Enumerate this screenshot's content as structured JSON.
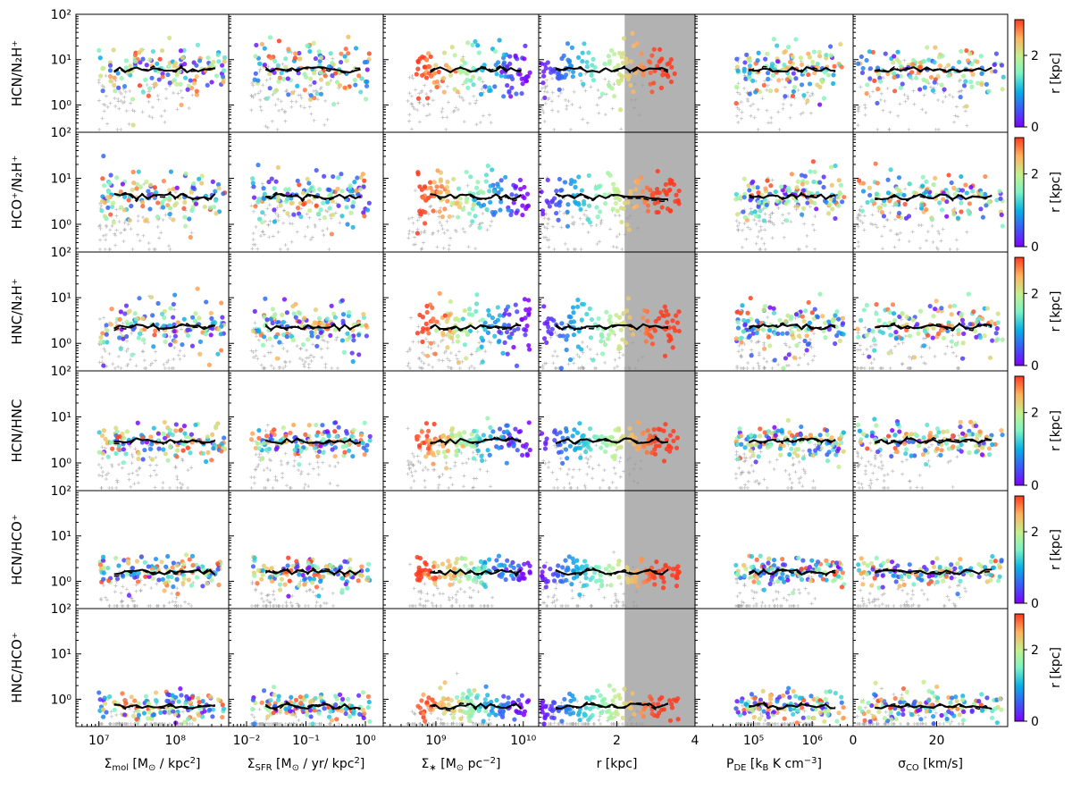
{
  "chart_data": {
    "type": "scatter",
    "layout": "6x6 panel grid, shared log y-axis per row, one colorbar per row",
    "ylim": [
      0.25,
      100
    ],
    "yscale": "log",
    "y_ticks": [
      {
        "value": 1,
        "label": "10⁰"
      },
      {
        "value": 10,
        "label": "10¹"
      },
      {
        "value": 100,
        "label": "10²"
      }
    ],
    "rows": [
      {
        "label": "HCN/N₂H⁺",
        "level": 6.0,
        "spread": 0.55
      },
      {
        "label": "HCO⁺/N₂H⁺",
        "level": 4.0,
        "spread": 0.5
      },
      {
        "label": "HNC/N₂H⁺",
        "level": 2.3,
        "spread": 0.5
      },
      {
        "label": "HCN/HNC",
        "level": 3.0,
        "spread": 0.35
      },
      {
        "label": "HCN/HCO⁺",
        "level": 1.6,
        "spread": 0.3
      },
      {
        "label": "HNC/HCO⁺",
        "level": 0.7,
        "spread": 0.3
      }
    ],
    "columns": [
      {
        "xlabel": "Σmol [M⊙ / kpc²]",
        "xscale": "log",
        "xlim": [
          5000000,
          500000000
        ],
        "data_range": [
          10000000,
          450000000
        ],
        "ticks": [
          {
            "value": 10000000,
            "label": "10⁷"
          },
          {
            "value": 100000000,
            "label": "10⁸"
          }
        ]
      },
      {
        "xlabel": "ΣSFR [M⊙ / yr/ kpc²]",
        "xscale": "log",
        "xlim": [
          0.005,
          2
        ],
        "data_range": [
          0.012,
          1.2
        ],
        "ticks": [
          {
            "value": 0.01,
            "label": "10⁻²"
          },
          {
            "value": 0.1,
            "label": "10⁻¹"
          },
          {
            "value": 1,
            "label": "10⁰"
          }
        ]
      },
      {
        "xlabel": "Σ∗ [M⊙ pc⁻²]",
        "xscale": "log",
        "xlim": [
          250000000,
          15000000000
        ],
        "data_range": [
          600000000,
          12000000000
        ],
        "ticks": [
          {
            "value": 1000000000,
            "label": "10⁹"
          },
          {
            "value": 10000000000,
            "label": "10¹⁰"
          }
        ]
      },
      {
        "xlabel": "r [kpc]",
        "xscale": "linear",
        "xlim": [
          0,
          4
        ],
        "data_range": [
          0,
          3.6
        ],
        "shaded_region": [
          2.2,
          4
        ],
        "ticks": [
          {
            "value": 2,
            "label": "2"
          },
          {
            "value": 4,
            "label": "4"
          }
        ]
      },
      {
        "xlabel": "P_DE [k_B K cm⁻³]",
        "xscale": "log",
        "xlim": [
          10000,
          5000000
        ],
        "data_range": [
          50000,
          3500000
        ],
        "ticks": [
          {
            "value": 100000,
            "label": "10⁵"
          },
          {
            "value": 1000000,
            "label": "10⁶"
          }
        ]
      },
      {
        "xlabel": "σCO [km/s]",
        "xscale": "linear",
        "xlim": [
          0,
          37
        ],
        "data_range": [
          1,
          36
        ],
        "ticks": [
          {
            "value": 0,
            "label": "0"
          },
          {
            "value": 20,
            "label": "20"
          }
        ]
      }
    ],
    "xlabel_parts": [
      {
        "main": "Σ",
        "sub": "mol",
        "rest": " [M",
        "sub2": "⊙",
        "rest2": " / kpc",
        "sup": "2",
        "end": "]"
      },
      {
        "main": "Σ",
        "sub": "SFR",
        "rest": " [M",
        "sub2": "⊙",
        "rest2": " / yr/ kpc",
        "sup": "2",
        "end": "]"
      },
      {
        "main": "Σ",
        "sub": "∗",
        "rest": " [M",
        "sub2": "⊙",
        "rest2": " pc",
        "sup": "−2",
        "end": "]"
      },
      {
        "main": "r [kpc]",
        "sub": "",
        "rest": "",
        "sub2": "",
        "rest2": "",
        "sup": "",
        "end": ""
      },
      {
        "main": "P",
        "sub": "DE",
        "rest": " [k",
        "sub2": "B",
        "rest2": " K cm",
        "sup": "−3",
        "end": "]"
      },
      {
        "main": "σ",
        "sub": "CO",
        "rest": " [km/s]",
        "sub2": "",
        "rest2": "",
        "sup": "",
        "end": ""
      }
    ],
    "colorbar": {
      "label": "r [kpc]",
      "range": [
        0,
        3
      ],
      "ticks": [
        {
          "value": 0,
          "label": "0"
        },
        {
          "value": 2,
          "label": "2"
        }
      ],
      "colormap": "rainbow"
    },
    "series": [
      {
        "marker": "circle",
        "color_by": "r [kpc]"
      },
      {
        "marker": "plus",
        "color": "#9a9a9a"
      },
      {
        "line": "solid",
        "color": "#000000"
      },
      {
        "line": "dashed",
        "color": "#000000"
      }
    ],
    "shade_color": "#b2b2b2",
    "grid": false
  }
}
